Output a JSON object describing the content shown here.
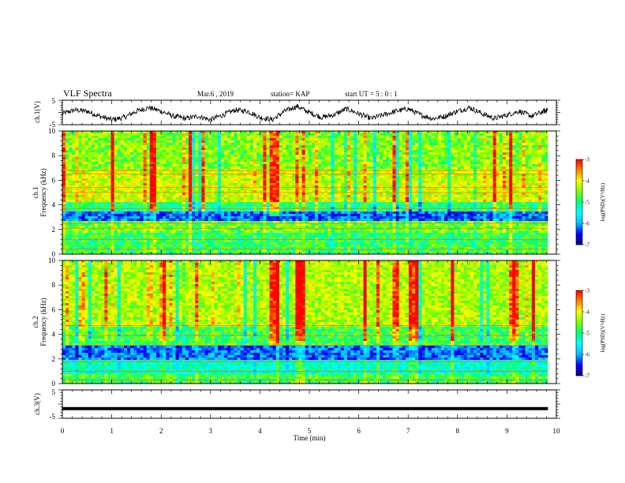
{
  "header": {
    "title": "VLF Spectra",
    "date": "Mar.6 , 2019",
    "station": "station= KAP",
    "start": "start UT = 5 : 0 : 1"
  },
  "colors": {
    "colormap": [
      "#000080",
      "#0000ff",
      "#00bfff",
      "#00ffff",
      "#00ff7f",
      "#7fff00",
      "#ffff00",
      "#ff7f00",
      "#ff0000",
      "#ffffff"
    ]
  },
  "chart_data": [
    {
      "type": "line",
      "panel": "ch1-waveform",
      "ylabel": "ch.1(V)",
      "ylim": [
        -5,
        5
      ],
      "yticklabels": [
        "5",
        "-5"
      ],
      "xlim": [
        0,
        10
      ],
      "series": [
        {
          "x": [
            0,
            0.25,
            0.5,
            0.75,
            1.0,
            1.25,
            1.5,
            1.75,
            2.0,
            2.25,
            2.5,
            2.75,
            3.0,
            3.25,
            3.5,
            3.75,
            4.0,
            4.25,
            4.5,
            4.75,
            5.0,
            5.25,
            5.5,
            5.75,
            6.0,
            6.25,
            6.5,
            6.75,
            7.0,
            7.25,
            7.5,
            7.75,
            8.0,
            8.25,
            8.5,
            8.75,
            9.0,
            9.25,
            9.5,
            9.75,
            9.83
          ],
          "y": [
            -0.5,
            1.0,
            0.5,
            -1.5,
            -3.0,
            -2.0,
            0.5,
            2.0,
            0.5,
            -1.5,
            -2.5,
            -1.5,
            -3.0,
            -1.0,
            1.0,
            0.5,
            -2.0,
            -3.0,
            0.5,
            2.5,
            0.0,
            -2.0,
            -1.0,
            1.5,
            -0.5,
            -2.5,
            -1.0,
            0.5,
            1.5,
            -1.0,
            -2.5,
            -1.5,
            0.5,
            2.0,
            -0.5,
            -2.5,
            -1.0,
            0.5,
            -1.5,
            0.5,
            1.0
          ]
        }
      ]
    },
    {
      "type": "heatmap",
      "panel": "ch1-spectrogram",
      "ylabel": "ch.1\nFrequency (kHz)",
      "ylim": [
        0,
        10
      ],
      "yticklabels": [
        "0",
        "2",
        "4",
        "6",
        "8",
        "10"
      ],
      "xlim": [
        0,
        10
      ],
      "x_extent_min": 9.83,
      "colorbar": {
        "label": "log(PSD)(V²/Hz)",
        "range": [
          -7,
          -3
        ],
        "ticklabels": [
          "-3",
          "-4",
          "-5",
          "-6",
          "-7"
        ]
      },
      "bands": [
        {
          "f": [
            0.0,
            0.8
          ],
          "level": -4.8
        },
        {
          "f": [
            0.8,
            1.8
          ],
          "level": -4.9
        },
        {
          "f": [
            1.8,
            2.6
          ],
          "level": -4.6
        },
        {
          "f": [
            2.6,
            3.4
          ],
          "level": -6.2
        },
        {
          "f": [
            3.4,
            4.2
          ],
          "level": -5.0
        },
        {
          "f": [
            4.2,
            7.0
          ],
          "level": -4.2
        },
        {
          "f": [
            7.0,
            10.0
          ],
          "level": -4.5
        }
      ],
      "lines_khz": [
        0.4,
        1.2,
        2.1,
        2.5,
        3.7,
        5.0,
        5.4,
        6.5,
        6.8
      ],
      "event_minutes": [
        4.3
      ]
    },
    {
      "type": "heatmap",
      "panel": "ch2-spectrogram",
      "ylabel": "ch.2\nFrequency (kHz)",
      "ylim": [
        0,
        10
      ],
      "yticklabels": [
        "0",
        "2",
        "4",
        "6",
        "8",
        "10"
      ],
      "xlim": [
        0,
        10
      ],
      "x_extent_min": 9.83,
      "colorbar": {
        "label": "log(PSD)(V²/Hz)",
        "range": [
          -7,
          -3
        ],
        "ticklabels": [
          "-3",
          "-4",
          "-5",
          "-6",
          "-7"
        ]
      },
      "bands": [
        {
          "f": [
            0.0,
            0.8
          ],
          "level": -4.8
        },
        {
          "f": [
            0.8,
            2.0
          ],
          "level": -5.3
        },
        {
          "f": [
            2.0,
            3.0
          ],
          "level": -6.2
        },
        {
          "f": [
            3.0,
            4.6
          ],
          "level": -4.8
        },
        {
          "f": [
            4.6,
            10.0
          ],
          "level": -4.3
        }
      ],
      "lines_khz": [
        0.3,
        1.0,
        1.8,
        3.1,
        3.9,
        4.7
      ],
      "event_minutes": [
        4.3
      ]
    },
    {
      "type": "line",
      "panel": "ch3-waveform",
      "ylabel": "ch.3(V)",
      "ylim": [
        -5,
        5
      ],
      "yticklabels": [
        "5",
        "-5"
      ],
      "xlim": [
        0,
        10
      ],
      "xlabel": "Time (min)",
      "xticklabels": [
        "0",
        "1",
        "2",
        "3",
        "4",
        "5",
        "6",
        "7",
        "8",
        "9",
        "10"
      ],
      "series": [
        {
          "x": [
            0,
            9.83
          ],
          "y": [
            -1.6,
            -1.6
          ]
        }
      ]
    }
  ]
}
